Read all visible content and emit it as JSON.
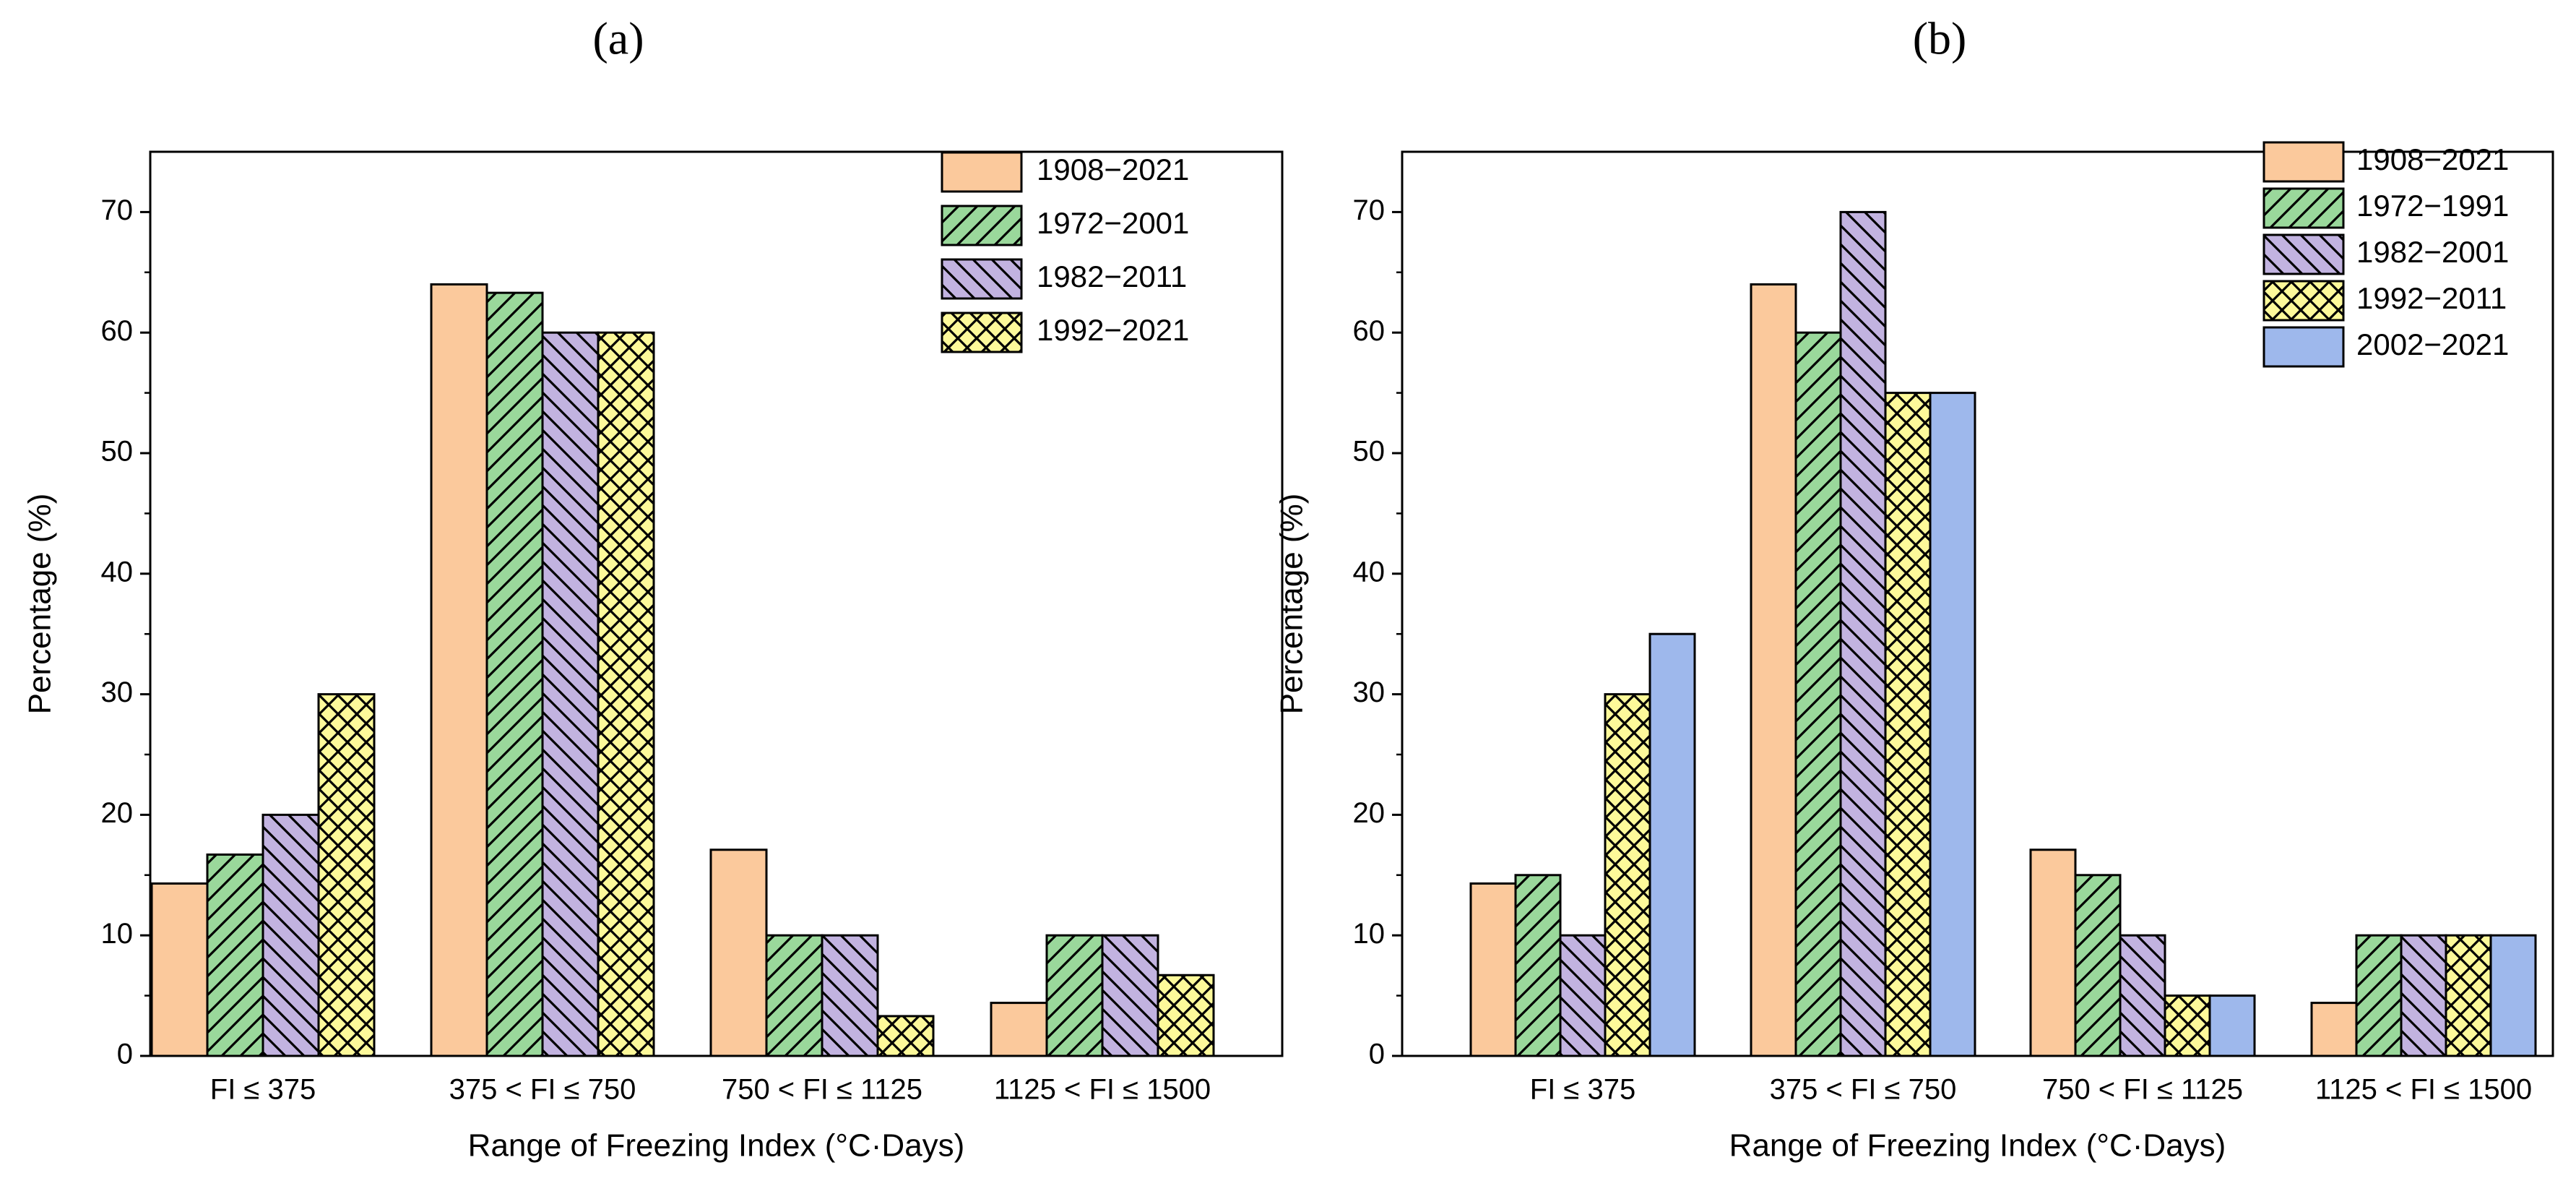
{
  "chart_data": [
    {
      "type": "bar",
      "panel_label": "(a)",
      "categories": [
        "FI  ≤ 375",
        "375 < FI ≤ 750",
        "750 < FI ≤ 1125",
        "1125 < FI ≤ 1500"
      ],
      "xlabel": "Range of Freezing Index (°C·Days)",
      "ylabel": "Percentage (%)",
      "ylim": [
        0,
        75
      ],
      "yticks": [
        0,
        10,
        20,
        30,
        40,
        50,
        60,
        70
      ],
      "legend_position": "top-right",
      "series": [
        {
          "name": "1908−2021",
          "values": [
            14.3,
            64.0,
            17.1,
            4.4
          ],
          "color": "#fbc99c",
          "pattern": "none"
        },
        {
          "name": "1972−2001",
          "values": [
            16.7,
            63.3,
            10.0,
            10.0
          ],
          "color": "#9ad89b",
          "pattern": "diag-right"
        },
        {
          "name": "1982−2011",
          "values": [
            20.0,
            60.0,
            10.0,
            10.0
          ],
          "color": "#c2b3e0",
          "pattern": "diag-left"
        },
        {
          "name": "1992−2021",
          "values": [
            30.0,
            60.0,
            3.3,
            6.7
          ],
          "color": "#fdf99a",
          "pattern": "cross"
        }
      ]
    },
    {
      "type": "bar",
      "panel_label": "(b)",
      "categories": [
        "FI  ≤ 375",
        "375 < FI ≤ 750",
        "750 < FI ≤ 1125",
        "1125 < FI ≤ 1500"
      ],
      "xlabel": "Range of Freezing Index (°C·Days)",
      "ylabel": "Percentage (%)",
      "ylim": [
        0,
        75
      ],
      "yticks": [
        0,
        10,
        20,
        30,
        40,
        50,
        60,
        70
      ],
      "legend_position": "top-right",
      "series": [
        {
          "name": "1908−2021",
          "values": [
            14.3,
            64.0,
            17.1,
            4.4
          ],
          "color": "#fbc99c",
          "pattern": "none"
        },
        {
          "name": "1972−1991",
          "values": [
            15.0,
            60.0,
            15.0,
            10.0
          ],
          "color": "#9ad89b",
          "pattern": "diag-right"
        },
        {
          "name": "1982−2001",
          "values": [
            10.0,
            70.0,
            10.0,
            10.0
          ],
          "color": "#c2b3e0",
          "pattern": "diag-left"
        },
        {
          "name": "1992−2011",
          "values": [
            30.0,
            55.0,
            5.0,
            10.0
          ],
          "color": "#fdf99a",
          "pattern": "cross"
        },
        {
          "name": "2002−2021",
          "values": [
            35.0,
            55.0,
            5.0,
            10.0
          ],
          "color": "#9eb8ec",
          "pattern": "none"
        }
      ]
    }
  ]
}
